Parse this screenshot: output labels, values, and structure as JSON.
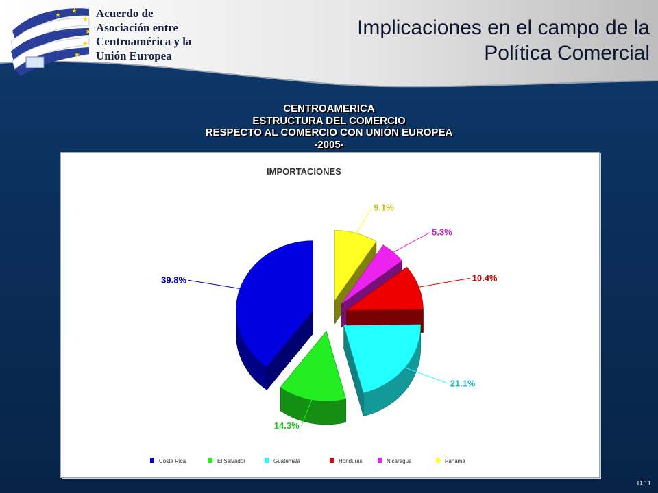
{
  "logo": {
    "lines": [
      "Acuerdo de",
      "Asociación entre",
      "Centroamérica y la",
      "Unión Europea"
    ]
  },
  "slide": {
    "title_lines": [
      "Implicaciones en el campo de la",
      "Política Comercial"
    ],
    "number": "D.11"
  },
  "chart_heading": {
    "lines": [
      "CENTROAMERICA",
      "ESTRUCTURA DEL COMERCIO",
      "RESPECTO AL COMERCIO CON  UNIÓN EUROPEA",
      "-2005-"
    ]
  },
  "chart_data": {
    "type": "pie",
    "title": "IMPORTACIONES",
    "categories": [
      "Costa Rica",
      "El Salvador",
      "Guatemala",
      "Honduras",
      "Nicaragua",
      "Panama"
    ],
    "values": [
      39.8,
      14.3,
      21.1,
      10.4,
      5.3,
      9.1
    ],
    "data_labels": [
      "39.8%",
      "14.3%",
      "21.1%",
      "10.4%",
      "5.3%",
      "9.1%"
    ],
    "colors": [
      "#0000e0",
      "#22ee22",
      "#22ffff",
      "#ee0000",
      "#ee22ee",
      "#ffff22"
    ],
    "exploded": true,
    "three_d": true,
    "legend_position": "bottom"
  },
  "colors": {
    "background": "#0f3463",
    "header": "#e0e0e0",
    "title_text": "#0d1530"
  }
}
